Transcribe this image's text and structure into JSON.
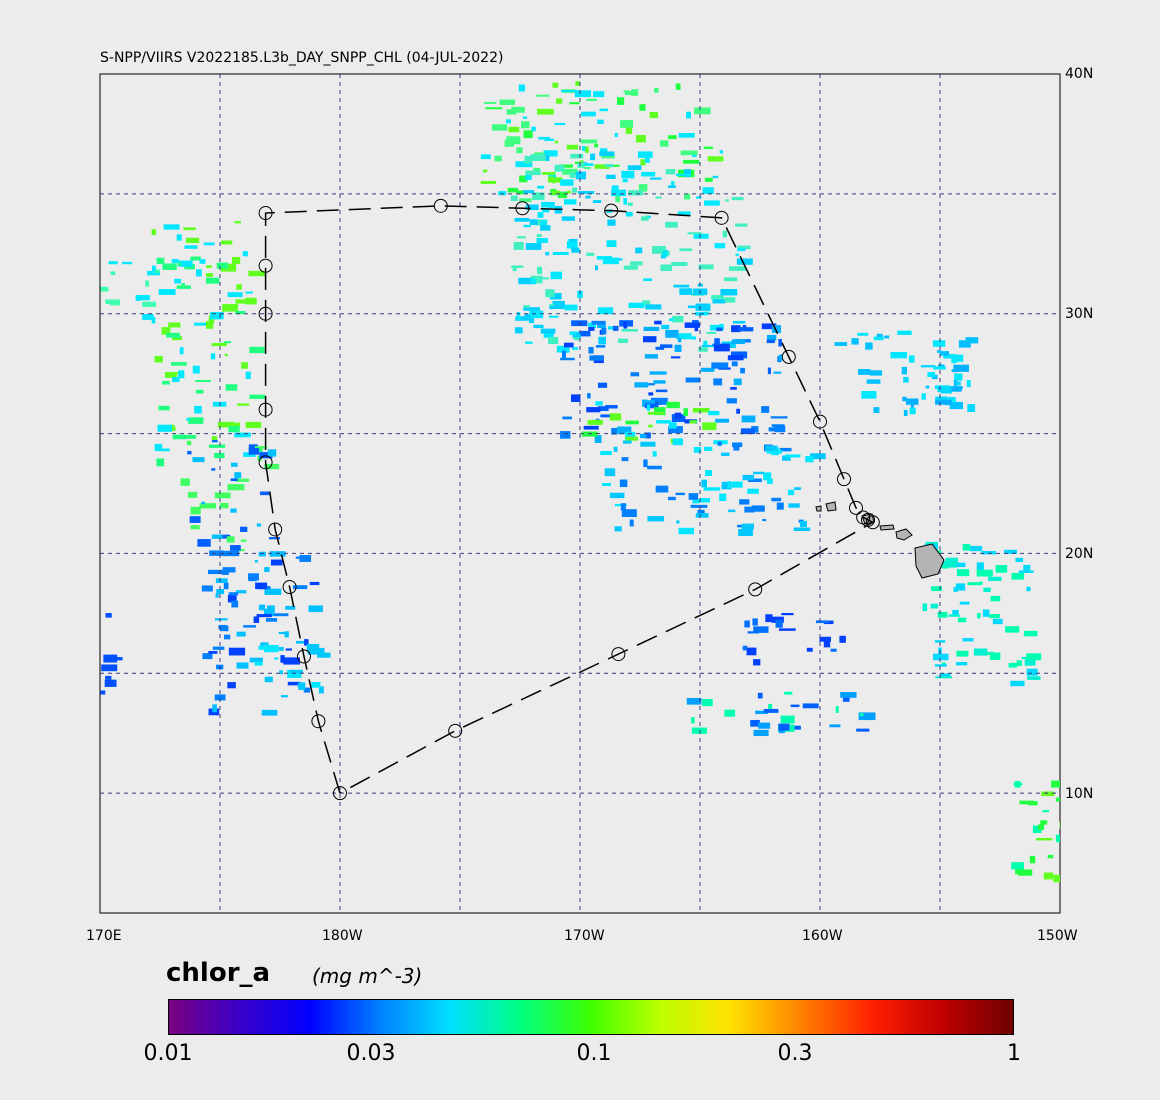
{
  "title": "S-NPP/VIIRS V2022185.L3b_DAY_SNPP_CHL (04-JUL-2022)",
  "variable": "chlor_a",
  "units": "(mg m^-3)",
  "lon_labels": [
    "170E",
    "180W",
    "170W",
    "160W",
    "150W"
  ],
  "lat_labels": [
    "40N",
    "30N",
    "20N",
    "10N"
  ],
  "colorbar": {
    "scale": "log",
    "range": [
      0.01,
      1
    ],
    "tick_labels": [
      "0.01",
      "0.03",
      "0.1",
      "0.3",
      "1"
    ],
    "colors": [
      "#7a0080",
      "#3a00c8",
      "#0000ff",
      "#0080ff",
      "#00e0ff",
      "#00ff80",
      "#40ff00",
      "#c0ff00",
      "#ffe000",
      "#ff8000",
      "#ff2000",
      "#c00000",
      "#700000"
    ]
  },
  "map": {
    "lon_range": [
      170,
      210
    ],
    "lat_range": [
      5,
      40
    ],
    "grid_lons": [
      175,
      180,
      185,
      190,
      195,
      200,
      205
    ],
    "grid_lats": [
      35,
      30,
      25,
      20,
      15,
      10
    ],
    "track_points": [
      [
        180.0,
        10.0
      ],
      [
        179.1,
        13.0
      ],
      [
        178.5,
        15.7
      ],
      [
        177.9,
        18.6
      ],
      [
        177.3,
        21.0
      ],
      [
        176.9,
        23.8
      ],
      [
        176.9,
        26.0
      ],
      [
        176.9,
        30.0
      ],
      [
        176.9,
        32.0
      ],
      [
        176.9,
        34.2
      ],
      [
        184.2,
        34.5
      ],
      [
        187.6,
        34.4
      ],
      [
        191.3,
        34.3
      ],
      [
        195.9,
        34.0
      ],
      [
        198.7,
        28.2
      ],
      [
        200.0,
        25.5
      ],
      [
        201.0,
        23.1
      ],
      [
        201.5,
        21.9
      ],
      [
        201.8,
        21.5
      ],
      [
        202.0,
        21.4
      ],
      [
        202.2,
        21.3
      ],
      [
        197.3,
        18.5
      ],
      [
        191.6,
        15.8
      ],
      [
        184.8,
        12.6
      ],
      [
        180.0,
        10.0
      ]
    ],
    "track_markers": [
      [
        180.0,
        10.0
      ],
      [
        179.1,
        13.0
      ],
      [
        178.5,
        15.7
      ],
      [
        177.9,
        18.6
      ],
      [
        177.3,
        21.0
      ],
      [
        176.9,
        23.8
      ],
      [
        176.9,
        26.0
      ],
      [
        176.9,
        30.0
      ],
      [
        176.9,
        32.0
      ],
      [
        176.9,
        34.2
      ],
      [
        184.2,
        34.5
      ],
      [
        187.6,
        34.4
      ],
      [
        191.3,
        34.3
      ],
      [
        195.9,
        34.0
      ],
      [
        198.7,
        28.2
      ],
      [
        200.0,
        25.5
      ],
      [
        201.0,
        23.1
      ],
      [
        201.5,
        21.9
      ],
      [
        201.8,
        21.5
      ],
      [
        202.0,
        21.4
      ],
      [
        202.2,
        21.3
      ],
      [
        197.3,
        18.5
      ],
      [
        191.6,
        15.8
      ],
      [
        184.8,
        12.6
      ]
    ]
  }
}
